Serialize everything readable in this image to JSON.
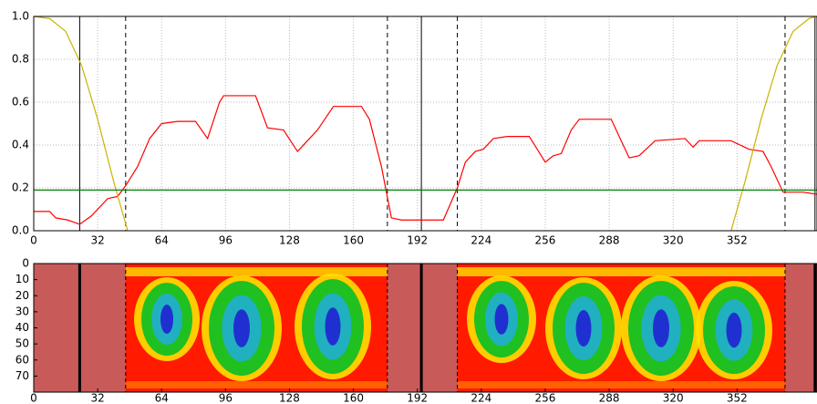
{
  "chart_data": [
    {
      "type": "line",
      "xlim": [
        0,
        392
      ],
      "ylim": [
        0,
        1
      ],
      "xticks": [
        0,
        32,
        64,
        96,
        128,
        160,
        192,
        224,
        256,
        288,
        320,
        352
      ],
      "yticks": [
        {
          "value": 0,
          "label": "0.0"
        },
        0.2,
        0.4,
        0.6,
        0.8,
        {
          "value": 1,
          "label": "1.0"
        }
      ],
      "grid": true,
      "series": [
        {
          "color": "#ff0000",
          "x": [
            0,
            8,
            11,
            17,
            20,
            23,
            29,
            37,
            42,
            46,
            52,
            58,
            64,
            72,
            81,
            87,
            93,
            95,
            111,
            117,
            125,
            132,
            137,
            142,
            150,
            164,
            168,
            174,
            179,
            184,
            205,
            212,
            216,
            221,
            225,
            230,
            237,
            248,
            256,
            260,
            264,
            269,
            273,
            289,
            295,
            298,
            303,
            311,
            326,
            330,
            333,
            349,
            358,
            365,
            369,
            375,
            385,
            392
          ],
          "values": [
            0.09,
            0.09,
            0.06,
            0.05,
            0.04,
            0.03,
            0.07,
            0.15,
            0.16,
            0.21,
            0.3,
            0.43,
            0.5,
            0.51,
            0.51,
            0.43,
            0.6,
            0.63,
            0.63,
            0.48,
            0.47,
            0.37,
            0.42,
            0.47,
            0.58,
            0.58,
            0.52,
            0.3,
            0.06,
            0.05,
            0.05,
            0.2,
            0.32,
            0.37,
            0.38,
            0.43,
            0.44,
            0.44,
            0.32,
            0.35,
            0.36,
            0.47,
            0.52,
            0.52,
            0.4,
            0.34,
            0.35,
            0.42,
            0.43,
            0.39,
            0.42,
            0.42,
            0.38,
            0.37,
            0.3,
            0.18,
            0.18,
            0.17
          ]
        },
        {
          "color": "#c8b400",
          "x": [
            0,
            8,
            16,
            24,
            32,
            40,
            47,
            200,
            349,
            356,
            364,
            372,
            380,
            388,
            392
          ],
          "values": [
            1,
            0.99,
            0.93,
            0.77,
            0.52,
            0.23,
            0,
            null,
            0,
            0.23,
            0.52,
            0.77,
            0.93,
            0.99,
            1
          ]
        },
        {
          "color": "#008000",
          "x": [
            0,
            392
          ],
          "values": [
            0.19,
            0.19
          ]
        }
      ],
      "vlines_solid": [
        23,
        194,
        391
      ],
      "vlines_dashed": [
        46,
        177,
        212,
        376
      ]
    },
    {
      "type": "image",
      "xlim": [
        0,
        392
      ],
      "ylim": [
        0,
        80
      ],
      "xticks": [
        0,
        32,
        64,
        96,
        128,
        160,
        192,
        224,
        256,
        288,
        320,
        352
      ],
      "yticks": [
        0,
        10,
        20,
        30,
        40,
        50,
        60,
        70
      ]
    }
  ]
}
